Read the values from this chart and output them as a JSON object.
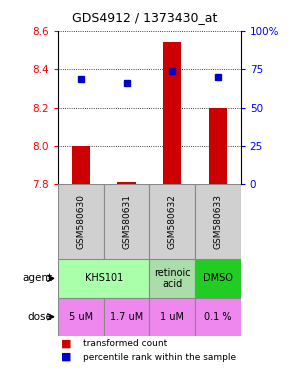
{
  "title": "GDS4912 / 1373430_at",
  "samples": [
    "GSM580630",
    "GSM580631",
    "GSM580632",
    "GSM580633"
  ],
  "bar_values": [
    8.0,
    7.81,
    8.54,
    8.2
  ],
  "bar_baseline": 7.8,
  "blue_dot_values": [
    8.35,
    8.33,
    8.39,
    8.36
  ],
  "ylim": [
    7.8,
    8.6
  ],
  "yticks_left": [
    7.8,
    8.0,
    8.2,
    8.4,
    8.6
  ],
  "yticks_right": [
    0,
    25,
    50,
    75,
    100
  ],
  "yticks_right_labels": [
    "0",
    "25",
    "50",
    "75",
    "100%"
  ],
  "bar_color": "#cc0000",
  "dot_color": "#0000cc",
  "agent_info": [
    [
      0,
      1,
      "KHS101",
      "#aaffaa"
    ],
    [
      2,
      2,
      "retinoic\nacid",
      "#aaddaa"
    ],
    [
      3,
      3,
      "DMSO",
      "#22cc22"
    ]
  ],
  "dose_labels": [
    "5 uM",
    "1.7 uM",
    "1 uM",
    "0.1 %"
  ],
  "dose_color": "#ee88ee",
  "sample_color": "#d0d0d0"
}
